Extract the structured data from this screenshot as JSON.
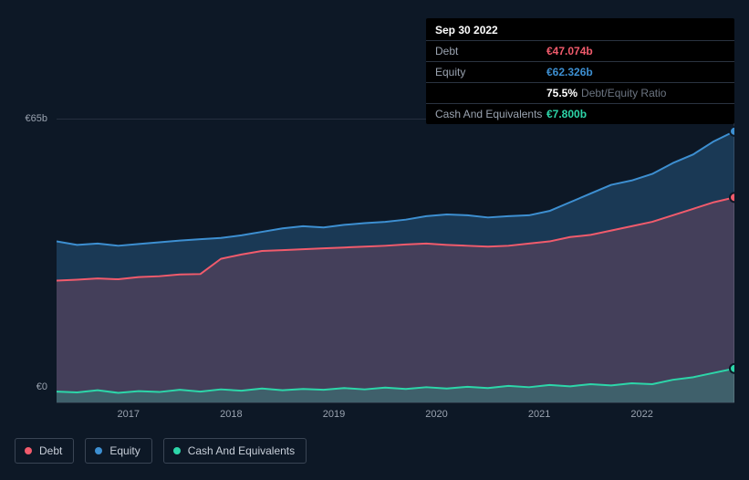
{
  "tooltip": {
    "date": "Sep 30 2022",
    "rows": [
      {
        "label": "Debt",
        "value": "€47.074b",
        "color": "#f15b6c"
      },
      {
        "label": "Equity",
        "value": "€62.326b",
        "color": "#3d8fd1"
      },
      {
        "label": "",
        "value": "75.5%",
        "sub": "Debt/Equity Ratio",
        "color": "#ffffff"
      },
      {
        "label": "Cash And Equivalents",
        "value": "€7.800b",
        "color": "#2dd6a9"
      }
    ]
  },
  "chart": {
    "type": "area",
    "background_color": "#0d1826",
    "grid_color": "#252f3e",
    "text_color": "#9aa3b0",
    "y_axis": {
      "max": 65,
      "labels": [
        {
          "text": "€65b",
          "pos": 0
        },
        {
          "text": "€0",
          "pos": 1
        }
      ]
    },
    "x_axis": {
      "ticks": [
        "2017",
        "2018",
        "2019",
        "2020",
        "2021",
        "2022"
      ]
    },
    "series": [
      {
        "name": "Equity",
        "color": "#3d8fd1",
        "fill": "rgba(61,143,209,0.28)",
        "line_width": 2,
        "data": [
          37,
          36.2,
          36.5,
          36,
          36.4,
          36.8,
          37.2,
          37.5,
          37.8,
          38.4,
          39.2,
          40,
          40.5,
          40.2,
          40.8,
          41.2,
          41.5,
          42,
          42.8,
          43.2,
          43,
          42.5,
          42.8,
          43,
          44,
          46,
          48,
          50,
          51,
          52.5,
          55,
          57,
          60,
          62.3
        ]
      },
      {
        "name": "Debt",
        "color": "#f15b6c",
        "fill": "rgba(241,91,108,0.20)",
        "line_width": 2,
        "data": [
          28,
          28.2,
          28.5,
          28.3,
          28.8,
          29,
          29.4,
          29.5,
          33,
          34,
          34.8,
          35,
          35.2,
          35.4,
          35.6,
          35.8,
          36,
          36.3,
          36.5,
          36.2,
          36,
          35.8,
          36,
          36.5,
          37,
          38,
          38.5,
          39.5,
          40.5,
          41.5,
          43,
          44.5,
          46,
          47.1
        ]
      },
      {
        "name": "Cash And Equivalents",
        "color": "#2dd6a9",
        "fill": "rgba(45,214,169,0.22)",
        "line_width": 2,
        "data": [
          2.5,
          2.3,
          2.8,
          2.2,
          2.6,
          2.4,
          2.9,
          2.5,
          3,
          2.7,
          3.2,
          2.8,
          3.1,
          2.9,
          3.3,
          3,
          3.4,
          3.1,
          3.5,
          3.2,
          3.6,
          3.3,
          3.8,
          3.5,
          4,
          3.7,
          4.2,
          3.9,
          4.4,
          4.2,
          5.2,
          5.8,
          6.8,
          7.8
        ]
      }
    ],
    "cursor": {
      "index": 33,
      "markers": [
        {
          "series": 0,
          "color": "#3d8fd1"
        },
        {
          "series": 1,
          "color": "#f15b6c"
        },
        {
          "series": 2,
          "color": "#2dd6a9"
        }
      ]
    }
  },
  "legend": [
    {
      "label": "Debt",
      "color": "#f15b6c"
    },
    {
      "label": "Equity",
      "color": "#3d8fd1"
    },
    {
      "label": "Cash And Equivalents",
      "color": "#2dd6a9"
    }
  ]
}
